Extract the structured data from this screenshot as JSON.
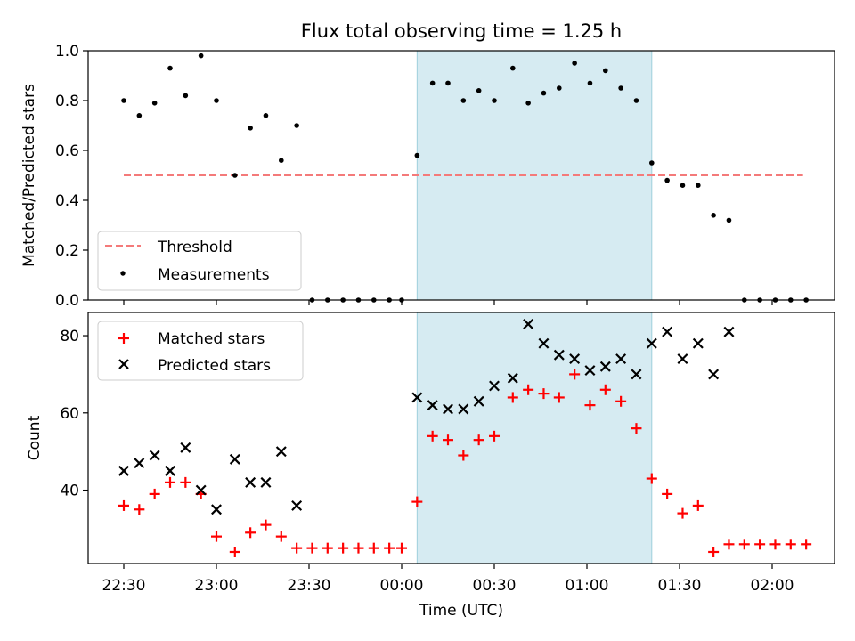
{
  "chart_data": {
    "title": "Flux total observing time = 1.25 h",
    "x_label": "Time (UTC)",
    "x_ticks": [
      "22:30",
      "23:00",
      "23:30",
      "00:00",
      "00:30",
      "01:00",
      "01:30",
      "02:00"
    ],
    "shaded_interval": [
      "00:05",
      "01:21"
    ],
    "colors": {
      "threshold": "#f47a7a",
      "matched": "#ff0000",
      "predicted": "#000000",
      "shade": "#add8e6"
    },
    "panels": [
      {
        "type": "scatter",
        "y_label": "Matched/Predicted stars",
        "ylim": [
          0,
          1.0
        ],
        "y_ticks": [
          "0.0",
          "0.2",
          "0.4",
          "0.6",
          "0.8",
          "1.0"
        ],
        "threshold": {
          "name": "Threshold",
          "value": 0.5,
          "x_range": [
            "22:30",
            "02:10"
          ]
        },
        "legend": [
          "Threshold",
          "Measurements"
        ],
        "series": [
          {
            "name": "Measurements",
            "marker": "dot",
            "points": [
              [
                "22:30",
                0.8
              ],
              [
                "22:35",
                0.74
              ],
              [
                "22:40",
                0.79
              ],
              [
                "22:45",
                0.93
              ],
              [
                "22:50",
                0.82
              ],
              [
                "22:55",
                0.98
              ],
              [
                "23:00",
                0.8
              ],
              [
                "23:06",
                0.5
              ],
              [
                "23:11",
                0.69
              ],
              [
                "23:16",
                0.74
              ],
              [
                "23:21",
                0.56
              ],
              [
                "23:26",
                0.7
              ],
              [
                "23:31",
                0.0
              ],
              [
                "23:36",
                0.0
              ],
              [
                "23:41",
                0.0
              ],
              [
                "23:46",
                0.0
              ],
              [
                "23:51",
                0.0
              ],
              [
                "23:56",
                0.0
              ],
              [
                "00:00",
                0.0
              ],
              [
                "00:05",
                0.58
              ],
              [
                "00:10",
                0.87
              ],
              [
                "00:15",
                0.87
              ],
              [
                "00:20",
                0.8
              ],
              [
                "00:25",
                0.84
              ],
              [
                "00:30",
                0.8
              ],
              [
                "00:36",
                0.93
              ],
              [
                "00:41",
                0.79
              ],
              [
                "00:46",
                0.83
              ],
              [
                "00:51",
                0.85
              ],
              [
                "00:56",
                0.95
              ],
              [
                "01:01",
                0.87
              ],
              [
                "01:06",
                0.92
              ],
              [
                "01:11",
                0.85
              ],
              [
                "01:16",
                0.8
              ],
              [
                "01:21",
                0.55
              ],
              [
                "01:26",
                0.48
              ],
              [
                "01:31",
                0.46
              ],
              [
                "01:36",
                0.46
              ],
              [
                "01:41",
                0.34
              ],
              [
                "01:46",
                0.32
              ],
              [
                "01:51",
                0.0
              ],
              [
                "01:56",
                0.0
              ],
              [
                "02:01",
                0.0
              ],
              [
                "02:06",
                0.0
              ],
              [
                "02:11",
                0.0
              ]
            ]
          }
        ]
      },
      {
        "type": "scatter",
        "y_label": "Count",
        "ylim": [
          21,
          86
        ],
        "y_ticks": [
          "40",
          "60",
          "80"
        ],
        "legend": [
          "Matched stars",
          "Predicted stars"
        ],
        "series": [
          {
            "name": "Matched stars",
            "marker": "plus",
            "points": [
              [
                "22:30",
                36
              ],
              [
                "22:35",
                35
              ],
              [
                "22:40",
                39
              ],
              [
                "22:45",
                42
              ],
              [
                "22:50",
                42
              ],
              [
                "22:55",
                39
              ],
              [
                "23:00",
                28
              ],
              [
                "23:06",
                24
              ],
              [
                "23:11",
                29
              ],
              [
                "23:16",
                31
              ],
              [
                "23:21",
                28
              ],
              [
                "23:26",
                25
              ],
              [
                "23:31",
                25
              ],
              [
                "23:36",
                25
              ],
              [
                "23:41",
                25
              ],
              [
                "23:46",
                25
              ],
              [
                "23:51",
                25
              ],
              [
                "23:56",
                25
              ],
              [
                "00:00",
                25
              ],
              [
                "00:05",
                37
              ],
              [
                "00:10",
                54
              ],
              [
                "00:15",
                53
              ],
              [
                "00:20",
                49
              ],
              [
                "00:25",
                53
              ],
              [
                "00:30",
                54
              ],
              [
                "00:36",
                64
              ],
              [
                "00:41",
                66
              ],
              [
                "00:46",
                65
              ],
              [
                "00:51",
                64
              ],
              [
                "00:56",
                70
              ],
              [
                "01:01",
                62
              ],
              [
                "01:06",
                66
              ],
              [
                "01:11",
                63
              ],
              [
                "01:16",
                56
              ],
              [
                "01:21",
                43
              ],
              [
                "01:26",
                39
              ],
              [
                "01:31",
                34
              ],
              [
                "01:36",
                36
              ],
              [
                "01:41",
                24
              ],
              [
                "01:46",
                26
              ],
              [
                "01:51",
                26
              ],
              [
                "01:56",
                26
              ],
              [
                "02:01",
                26
              ],
              [
                "02:06",
                26
              ],
              [
                "02:11",
                26
              ]
            ]
          },
          {
            "name": "Predicted stars",
            "marker": "x",
            "points": [
              [
                "22:30",
                45
              ],
              [
                "22:35",
                47
              ],
              [
                "22:40",
                49
              ],
              [
                "22:45",
                45
              ],
              [
                "22:50",
                51
              ],
              [
                "22:55",
                40
              ],
              [
                "23:00",
                35
              ],
              [
                "23:06",
                48
              ],
              [
                "23:11",
                42
              ],
              [
                "23:16",
                42
              ],
              [
                "23:21",
                50
              ],
              [
                "23:26",
                36
              ],
              [
                "00:05",
                64
              ],
              [
                "00:10",
                62
              ],
              [
                "00:15",
                61
              ],
              [
                "00:20",
                61
              ],
              [
                "00:25",
                63
              ],
              [
                "00:30",
                67
              ],
              [
                "00:36",
                69
              ],
              [
                "00:41",
                83
              ],
              [
                "00:46",
                78
              ],
              [
                "00:51",
                75
              ],
              [
                "00:56",
                74
              ],
              [
                "01:01",
                71
              ],
              [
                "01:06",
                72
              ],
              [
                "01:11",
                74
              ],
              [
                "01:16",
                70
              ],
              [
                "01:21",
                78
              ],
              [
                "01:26",
                81
              ],
              [
                "01:31",
                74
              ],
              [
                "01:36",
                78
              ],
              [
                "01:41",
                70
              ],
              [
                "01:46",
                81
              ]
            ]
          }
        ]
      }
    ]
  }
}
